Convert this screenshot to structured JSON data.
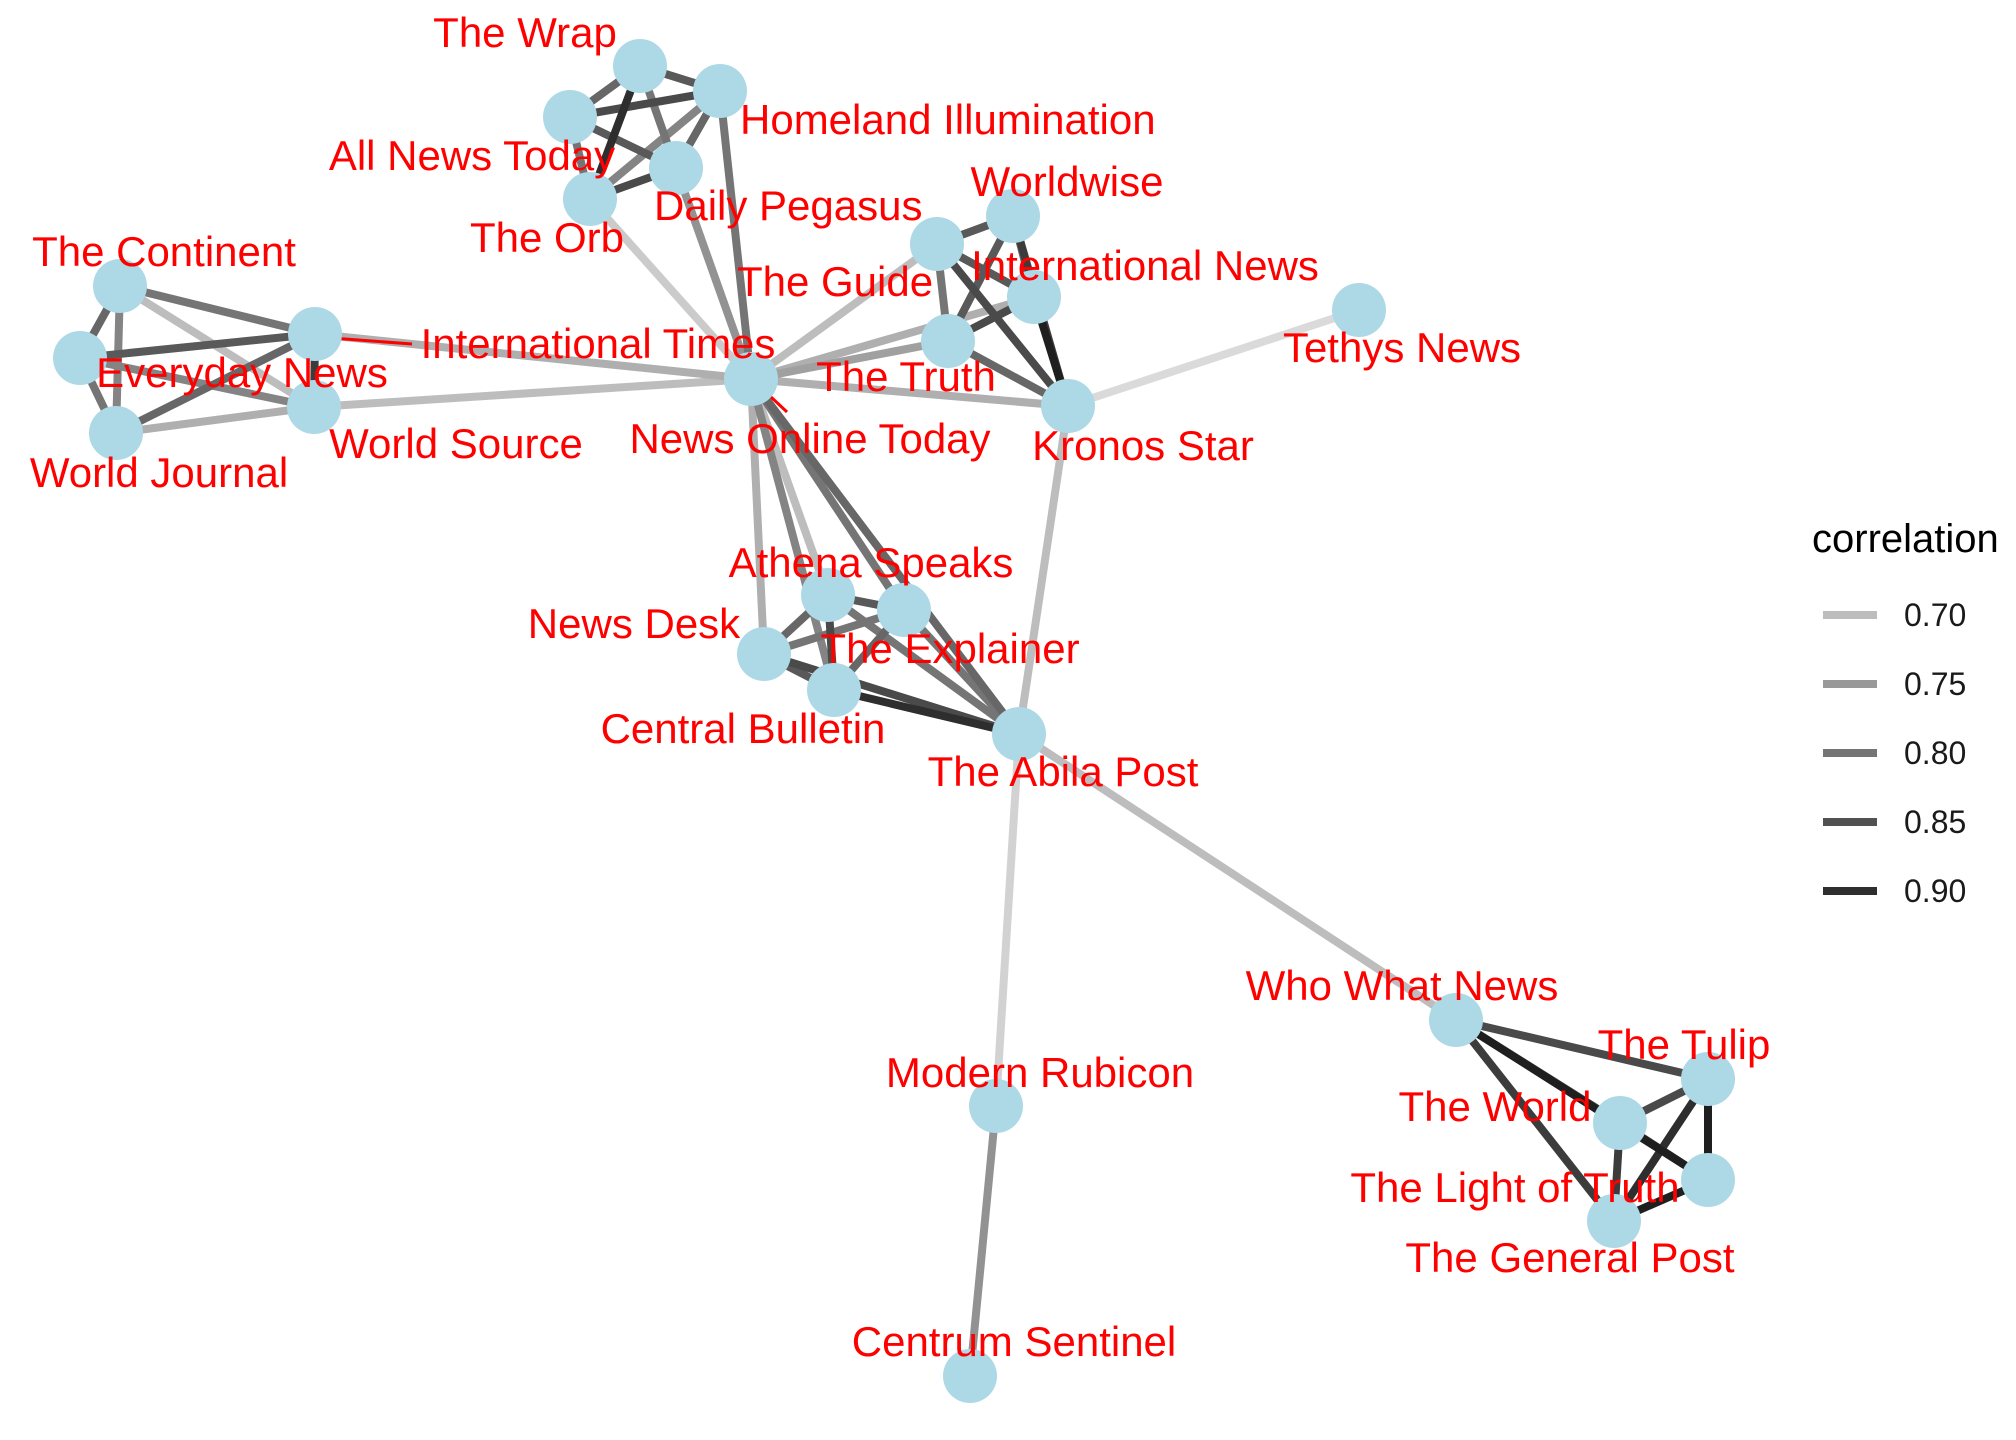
{
  "colors": {
    "node": "#add8e6",
    "label": "#ff0000",
    "background": "#ffffff"
  },
  "nodes": [
    {
      "id": "the_wrap",
      "name": "The Wrap"
    },
    {
      "id": "homeland",
      "name": "Homeland Illumination"
    },
    {
      "id": "all_news_today",
      "name": "All News Today"
    },
    {
      "id": "daily_pegasus",
      "name": "Daily Pegasus"
    },
    {
      "id": "the_orb",
      "name": "The Orb"
    },
    {
      "id": "worldwise",
      "name": "Worldwise"
    },
    {
      "id": "the_guide",
      "name": "The Guide"
    },
    {
      "id": "international_news",
      "name": "International News"
    },
    {
      "id": "the_truth",
      "name": "The Truth"
    },
    {
      "id": "tethys_news",
      "name": "Tethys News"
    },
    {
      "id": "kronos_star",
      "name": "Kronos Star"
    },
    {
      "id": "news_online_today",
      "name": "News Online Today"
    },
    {
      "id": "the_continent",
      "name": "The Continent"
    },
    {
      "id": "international_times",
      "name": "International Times"
    },
    {
      "id": "everyday_news",
      "name": "Everyday News"
    },
    {
      "id": "world_journal",
      "name": "World Journal"
    },
    {
      "id": "world_source",
      "name": "World Source"
    },
    {
      "id": "athena_speaks",
      "name": "Athena Speaks"
    },
    {
      "id": "news_desk",
      "name": "News Desk"
    },
    {
      "id": "the_explainer",
      "name": "The Explainer"
    },
    {
      "id": "central_bulletin",
      "name": "Central Bulletin"
    },
    {
      "id": "the_abila_post",
      "name": "The Abila Post"
    },
    {
      "id": "who_what_news",
      "name": "Who What News"
    },
    {
      "id": "the_tulip",
      "name": "The Tulip"
    },
    {
      "id": "the_world",
      "name": "The World"
    },
    {
      "id": "the_light_of_truth",
      "name": "The Light of Truth"
    },
    {
      "id": "the_general_post",
      "name": "The General Post"
    },
    {
      "id": "modern_rubicon",
      "name": "Modern Rubicon"
    },
    {
      "id": "centrum_sentinel",
      "name": "Centrum Sentinel"
    }
  ],
  "edges": [
    {
      "source": "the_wrap",
      "target": "homeland",
      "correlation": 0.84
    },
    {
      "source": "the_wrap",
      "target": "all_news_today",
      "correlation": 0.82
    },
    {
      "source": "the_wrap",
      "target": "daily_pegasus",
      "correlation": 0.8
    },
    {
      "source": "the_wrap",
      "target": "the_orb",
      "correlation": 0.9
    },
    {
      "source": "homeland",
      "target": "all_news_today",
      "correlation": 0.86
    },
    {
      "source": "homeland",
      "target": "daily_pegasus",
      "correlation": 0.82
    },
    {
      "source": "homeland",
      "target": "the_orb",
      "correlation": 0.78
    },
    {
      "source": "all_news_today",
      "target": "daily_pegasus",
      "correlation": 0.84
    },
    {
      "source": "all_news_today",
      "target": "the_orb",
      "correlation": 0.8
    },
    {
      "source": "daily_pegasus",
      "target": "the_orb",
      "correlation": 0.86
    },
    {
      "source": "homeland",
      "target": "news_online_today",
      "correlation": 0.8
    },
    {
      "source": "daily_pegasus",
      "target": "news_online_today",
      "correlation": 0.76
    },
    {
      "source": "the_orb",
      "target": "news_online_today",
      "correlation": 0.68
    },
    {
      "source": "worldwise",
      "target": "the_guide",
      "correlation": 0.84
    },
    {
      "source": "worldwise",
      "target": "international_news",
      "correlation": 0.82
    },
    {
      "source": "worldwise",
      "target": "the_truth",
      "correlation": 0.84
    },
    {
      "source": "worldwise",
      "target": "kronos_star",
      "correlation": 0.88
    },
    {
      "source": "the_guide",
      "target": "international_news",
      "correlation": 0.84
    },
    {
      "source": "the_guide",
      "target": "the_truth",
      "correlation": 0.8
    },
    {
      "source": "the_guide",
      "target": "kronos_star",
      "correlation": 0.86
    },
    {
      "source": "international_news",
      "target": "the_truth",
      "correlation": 0.86
    },
    {
      "source": "international_news",
      "target": "kronos_star",
      "correlation": 0.92
    },
    {
      "source": "the_truth",
      "target": "kronos_star",
      "correlation": 0.82
    },
    {
      "source": "the_guide",
      "target": "news_online_today",
      "correlation": 0.7
    },
    {
      "source": "international_news",
      "target": "news_online_today",
      "correlation": 0.72
    },
    {
      "source": "the_truth",
      "target": "news_online_today",
      "correlation": 0.74
    },
    {
      "source": "kronos_star",
      "target": "news_online_today",
      "correlation": 0.72
    },
    {
      "source": "kronos_star",
      "target": "tethys_news",
      "correlation": 0.66
    },
    {
      "source": "kronos_star",
      "target": "the_abila_post",
      "correlation": 0.7
    },
    {
      "source": "the_continent",
      "target": "international_times",
      "correlation": 0.8
    },
    {
      "source": "the_continent",
      "target": "everyday_news",
      "correlation": 0.82
    },
    {
      "source": "the_continent",
      "target": "world_journal",
      "correlation": 0.78
    },
    {
      "source": "the_continent",
      "target": "world_source",
      "correlation": 0.7
    },
    {
      "source": "international_times",
      "target": "everyday_news",
      "correlation": 0.84
    },
    {
      "source": "international_times",
      "target": "world_journal",
      "correlation": 0.82
    },
    {
      "source": "international_times",
      "target": "world_source",
      "correlation": 0.88
    },
    {
      "source": "everyday_news",
      "target": "world_journal",
      "correlation": 0.8
    },
    {
      "source": "everyday_news",
      "target": "world_source",
      "correlation": 0.78
    },
    {
      "source": "world_journal",
      "target": "world_source",
      "correlation": 0.72
    },
    {
      "source": "international_times",
      "target": "news_online_today",
      "correlation": 0.72
    },
    {
      "source": "world_source",
      "target": "news_online_today",
      "correlation": 0.7
    },
    {
      "source": "athena_speaks",
      "target": "news_desk",
      "correlation": 0.82
    },
    {
      "source": "athena_speaks",
      "target": "the_explainer",
      "correlation": 0.84
    },
    {
      "source": "athena_speaks",
      "target": "central_bulletin",
      "correlation": 0.86
    },
    {
      "source": "athena_speaks",
      "target": "the_abila_post",
      "correlation": 0.8
    },
    {
      "source": "news_desk",
      "target": "the_explainer",
      "correlation": 0.8
    },
    {
      "source": "news_desk",
      "target": "central_bulletin",
      "correlation": 0.84
    },
    {
      "source": "news_desk",
      "target": "the_abila_post",
      "correlation": 0.86
    },
    {
      "source": "the_explainer",
      "target": "central_bulletin",
      "correlation": 0.82
    },
    {
      "source": "the_explainer",
      "target": "the_abila_post",
      "correlation": 0.8
    },
    {
      "source": "central_bulletin",
      "target": "the_abila_post",
      "correlation": 0.9
    },
    {
      "source": "news_online_today",
      "target": "news_desk",
      "correlation": 0.72
    },
    {
      "source": "news_online_today",
      "target": "athena_speaks",
      "correlation": 0.7
    },
    {
      "source": "news_online_today",
      "target": "the_explainer",
      "correlation": 0.8
    },
    {
      "source": "news_online_today",
      "target": "central_bulletin",
      "correlation": 0.78
    },
    {
      "source": "news_online_today",
      "target": "the_abila_post",
      "correlation": 0.82
    },
    {
      "source": "the_abila_post",
      "target": "who_what_news",
      "correlation": 0.7
    },
    {
      "source": "the_abila_post",
      "target": "modern_rubicon",
      "correlation": 0.67
    },
    {
      "source": "modern_rubicon",
      "target": "centrum_sentinel",
      "correlation": 0.76
    },
    {
      "source": "who_what_news",
      "target": "the_tulip",
      "correlation": 0.86
    },
    {
      "source": "who_what_news",
      "target": "the_world",
      "correlation": 0.88
    },
    {
      "source": "who_what_news",
      "target": "the_light_of_truth",
      "correlation": 0.92
    },
    {
      "source": "who_what_news",
      "target": "the_general_post",
      "correlation": 0.88
    },
    {
      "source": "the_tulip",
      "target": "the_world",
      "correlation": 0.86
    },
    {
      "source": "the_tulip",
      "target": "the_light_of_truth",
      "correlation": 0.92
    },
    {
      "source": "the_tulip",
      "target": "the_general_post",
      "correlation": 0.9
    },
    {
      "source": "the_world",
      "target": "the_light_of_truth",
      "correlation": 0.9
    },
    {
      "source": "the_world",
      "target": "the_general_post",
      "correlation": 0.88
    },
    {
      "source": "the_light_of_truth",
      "target": "the_general_post",
      "correlation": 0.92
    }
  ],
  "legend": {
    "title": "correlation",
    "entries": [
      {
        "label": "0.70",
        "value": 0.7
      },
      {
        "label": "0.75",
        "value": 0.75
      },
      {
        "label": "0.80",
        "value": 0.8
      },
      {
        "label": "0.85",
        "value": 0.85
      },
      {
        "label": "0.90",
        "value": 0.9
      }
    ]
  }
}
